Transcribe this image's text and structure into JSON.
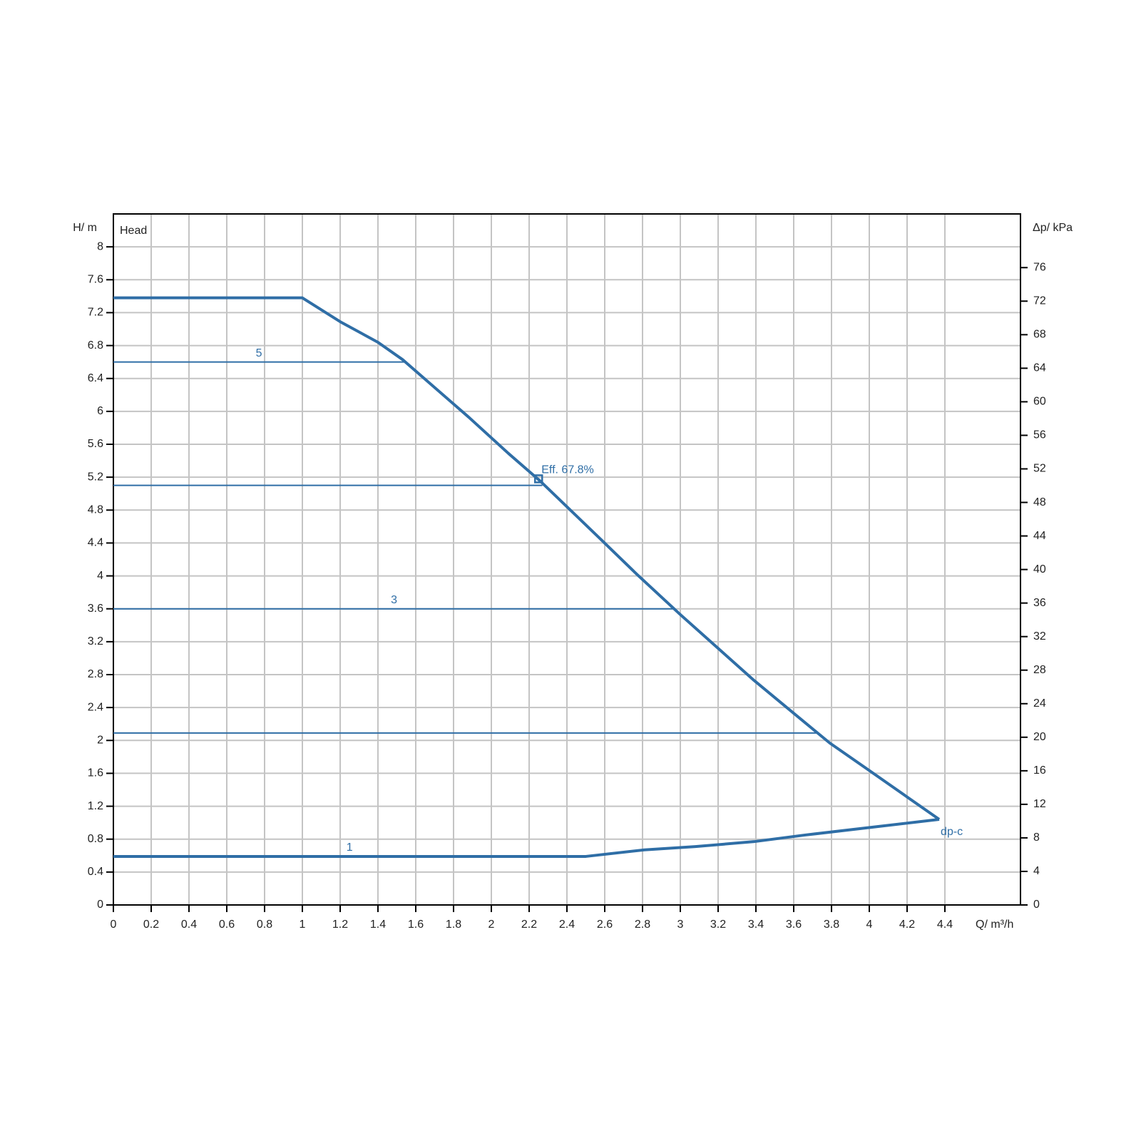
{
  "chart_data": {
    "type": "line",
    "inner_label": "Head",
    "ylabel": "H/ m",
    "y2label": "Δp/ kPa",
    "xlabel": "Q/ m³/h",
    "color": "#2f6ea6",
    "grid": true,
    "xlim": [
      0,
      4.8
    ],
    "xticks": [
      0,
      0.2,
      0.4,
      0.6,
      0.8,
      1,
      1.2,
      1.4,
      1.6,
      1.8,
      2,
      2.2,
      2.4,
      2.6,
      2.8,
      3,
      3.2,
      3.4,
      3.6,
      3.8,
      4,
      4.2,
      4.4
    ],
    "ylim": [
      0,
      8.4
    ],
    "yticks": [
      0,
      0.4,
      0.8,
      1.2,
      1.6,
      2,
      2.4,
      2.8,
      3.2,
      3.6,
      4,
      4.4,
      4.8,
      5.2,
      5.6,
      6,
      6.4,
      6.8,
      7.2,
      7.6,
      8
    ],
    "y2lim": [
      0,
      82.4
    ],
    "y2ticks": [
      0,
      4,
      8,
      12,
      16,
      20,
      24,
      28,
      32,
      36,
      40,
      44,
      48,
      52,
      56,
      60,
      64,
      68,
      72,
      76
    ],
    "series": [
      {
        "name": "dp-c",
        "x": [
          0,
          1,
          1.2,
          1.4,
          1.53,
          1.88,
          2.09,
          2.26,
          2.59,
          2.77,
          3,
          3.39,
          3.6,
          3.79,
          3.99,
          4.37
        ],
        "values": [
          7.38,
          7.38,
          7.09,
          6.84,
          6.63,
          5.93,
          5.49,
          5.15,
          4.42,
          4.02,
          3.53,
          2.73,
          2.33,
          1.97,
          1.65,
          1.04
        ]
      },
      {
        "name": "1",
        "x": [
          0,
          2.5,
          2.81,
          3.08,
          3.39,
          3.66,
          4.37
        ],
        "values": [
          0.59,
          0.59,
          0.67,
          0.71,
          0.77,
          0.85,
          1.04
        ]
      },
      {
        "name": "5",
        "x": [
          0,
          1.54
        ],
        "values": [
          6.6,
          6.6
        ]
      },
      {
        "x": [
          0,
          2.27
        ],
        "values": [
          5.1,
          5.1
        ]
      },
      {
        "name": "3",
        "x": [
          0,
          2.97
        ],
        "values": [
          3.6,
          3.6
        ]
      },
      {
        "x": [
          0,
          3.72
        ],
        "values": [
          2.09,
          2.09
        ]
      }
    ],
    "annotations": [
      {
        "text": "Eff. 67.8%",
        "x": 2.25,
        "y": 5.18
      }
    ]
  }
}
